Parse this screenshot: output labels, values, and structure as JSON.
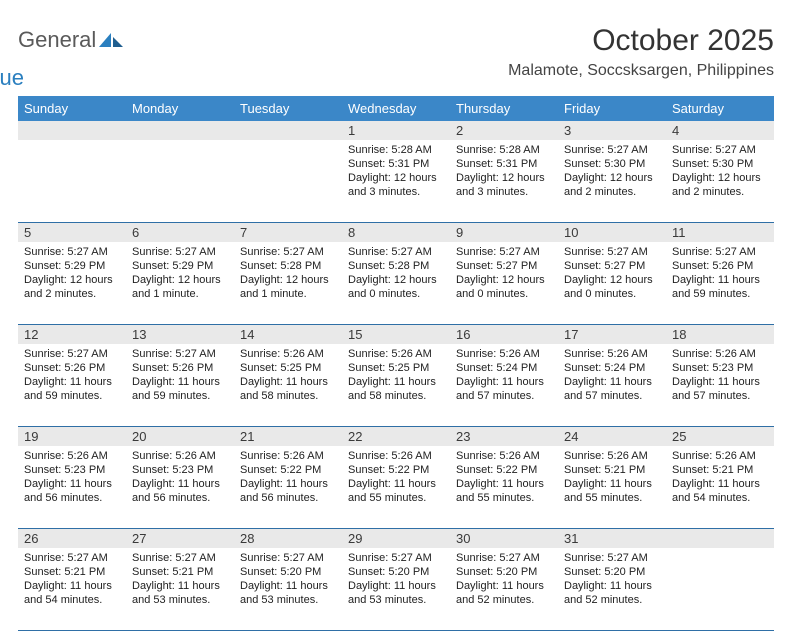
{
  "brand": {
    "word1": "General",
    "word2": "Blue"
  },
  "title": "October 2025",
  "location": "Malamote, Soccsksargen, Philippines",
  "colors": {
    "header_bg": "#3b87c8",
    "header_text": "#ffffff",
    "daynum_bg": "#e9e9e9",
    "week_border": "#2f6fa6",
    "text": "#222222",
    "brand_gray": "#5a5a5a",
    "brand_blue": "#2a7fbf",
    "page_bg": "#ffffff"
  },
  "days_of_week": [
    "Sunday",
    "Monday",
    "Tuesday",
    "Wednesday",
    "Thursday",
    "Friday",
    "Saturday"
  ],
  "weeks": [
    [
      {
        "n": "",
        "lines": []
      },
      {
        "n": "",
        "lines": []
      },
      {
        "n": "",
        "lines": []
      },
      {
        "n": "1",
        "lines": [
          "Sunrise: 5:28 AM",
          "Sunset: 5:31 PM",
          "Daylight: 12 hours and 3 minutes."
        ]
      },
      {
        "n": "2",
        "lines": [
          "Sunrise: 5:28 AM",
          "Sunset: 5:31 PM",
          "Daylight: 12 hours and 3 minutes."
        ]
      },
      {
        "n": "3",
        "lines": [
          "Sunrise: 5:27 AM",
          "Sunset: 5:30 PM",
          "Daylight: 12 hours and 2 minutes."
        ]
      },
      {
        "n": "4",
        "lines": [
          "Sunrise: 5:27 AM",
          "Sunset: 5:30 PM",
          "Daylight: 12 hours and 2 minutes."
        ]
      }
    ],
    [
      {
        "n": "5",
        "lines": [
          "Sunrise: 5:27 AM",
          "Sunset: 5:29 PM",
          "Daylight: 12 hours and 2 minutes."
        ]
      },
      {
        "n": "6",
        "lines": [
          "Sunrise: 5:27 AM",
          "Sunset: 5:29 PM",
          "Daylight: 12 hours and 1 minute."
        ]
      },
      {
        "n": "7",
        "lines": [
          "Sunrise: 5:27 AM",
          "Sunset: 5:28 PM",
          "Daylight: 12 hours and 1 minute."
        ]
      },
      {
        "n": "8",
        "lines": [
          "Sunrise: 5:27 AM",
          "Sunset: 5:28 PM",
          "Daylight: 12 hours and 0 minutes."
        ]
      },
      {
        "n": "9",
        "lines": [
          "Sunrise: 5:27 AM",
          "Sunset: 5:27 PM",
          "Daylight: 12 hours and 0 minutes."
        ]
      },
      {
        "n": "10",
        "lines": [
          "Sunrise: 5:27 AM",
          "Sunset: 5:27 PM",
          "Daylight: 12 hours and 0 minutes."
        ]
      },
      {
        "n": "11",
        "lines": [
          "Sunrise: 5:27 AM",
          "Sunset: 5:26 PM",
          "Daylight: 11 hours and 59 minutes."
        ]
      }
    ],
    [
      {
        "n": "12",
        "lines": [
          "Sunrise: 5:27 AM",
          "Sunset: 5:26 PM",
          "Daylight: 11 hours and 59 minutes."
        ]
      },
      {
        "n": "13",
        "lines": [
          "Sunrise: 5:27 AM",
          "Sunset: 5:26 PM",
          "Daylight: 11 hours and 59 minutes."
        ]
      },
      {
        "n": "14",
        "lines": [
          "Sunrise: 5:26 AM",
          "Sunset: 5:25 PM",
          "Daylight: 11 hours and 58 minutes."
        ]
      },
      {
        "n": "15",
        "lines": [
          "Sunrise: 5:26 AM",
          "Sunset: 5:25 PM",
          "Daylight: 11 hours and 58 minutes."
        ]
      },
      {
        "n": "16",
        "lines": [
          "Sunrise: 5:26 AM",
          "Sunset: 5:24 PM",
          "Daylight: 11 hours and 57 minutes."
        ]
      },
      {
        "n": "17",
        "lines": [
          "Sunrise: 5:26 AM",
          "Sunset: 5:24 PM",
          "Daylight: 11 hours and 57 minutes."
        ]
      },
      {
        "n": "18",
        "lines": [
          "Sunrise: 5:26 AM",
          "Sunset: 5:23 PM",
          "Daylight: 11 hours and 57 minutes."
        ]
      }
    ],
    [
      {
        "n": "19",
        "lines": [
          "Sunrise: 5:26 AM",
          "Sunset: 5:23 PM",
          "Daylight: 11 hours and 56 minutes."
        ]
      },
      {
        "n": "20",
        "lines": [
          "Sunrise: 5:26 AM",
          "Sunset: 5:23 PM",
          "Daylight: 11 hours and 56 minutes."
        ]
      },
      {
        "n": "21",
        "lines": [
          "Sunrise: 5:26 AM",
          "Sunset: 5:22 PM",
          "Daylight: 11 hours and 56 minutes."
        ]
      },
      {
        "n": "22",
        "lines": [
          "Sunrise: 5:26 AM",
          "Sunset: 5:22 PM",
          "Daylight: 11 hours and 55 minutes."
        ]
      },
      {
        "n": "23",
        "lines": [
          "Sunrise: 5:26 AM",
          "Sunset: 5:22 PM",
          "Daylight: 11 hours and 55 minutes."
        ]
      },
      {
        "n": "24",
        "lines": [
          "Sunrise: 5:26 AM",
          "Sunset: 5:21 PM",
          "Daylight: 11 hours and 55 minutes."
        ]
      },
      {
        "n": "25",
        "lines": [
          "Sunrise: 5:26 AM",
          "Sunset: 5:21 PM",
          "Daylight: 11 hours and 54 minutes."
        ]
      }
    ],
    [
      {
        "n": "26",
        "lines": [
          "Sunrise: 5:27 AM",
          "Sunset: 5:21 PM",
          "Daylight: 11 hours and 54 minutes."
        ]
      },
      {
        "n": "27",
        "lines": [
          "Sunrise: 5:27 AM",
          "Sunset: 5:21 PM",
          "Daylight: 11 hours and 53 minutes."
        ]
      },
      {
        "n": "28",
        "lines": [
          "Sunrise: 5:27 AM",
          "Sunset: 5:20 PM",
          "Daylight: 11 hours and 53 minutes."
        ]
      },
      {
        "n": "29",
        "lines": [
          "Sunrise: 5:27 AM",
          "Sunset: 5:20 PM",
          "Daylight: 11 hours and 53 minutes."
        ]
      },
      {
        "n": "30",
        "lines": [
          "Sunrise: 5:27 AM",
          "Sunset: 5:20 PM",
          "Daylight: 11 hours and 52 minutes."
        ]
      },
      {
        "n": "31",
        "lines": [
          "Sunrise: 5:27 AM",
          "Sunset: 5:20 PM",
          "Daylight: 11 hours and 52 minutes."
        ]
      },
      {
        "n": "",
        "lines": []
      }
    ]
  ]
}
